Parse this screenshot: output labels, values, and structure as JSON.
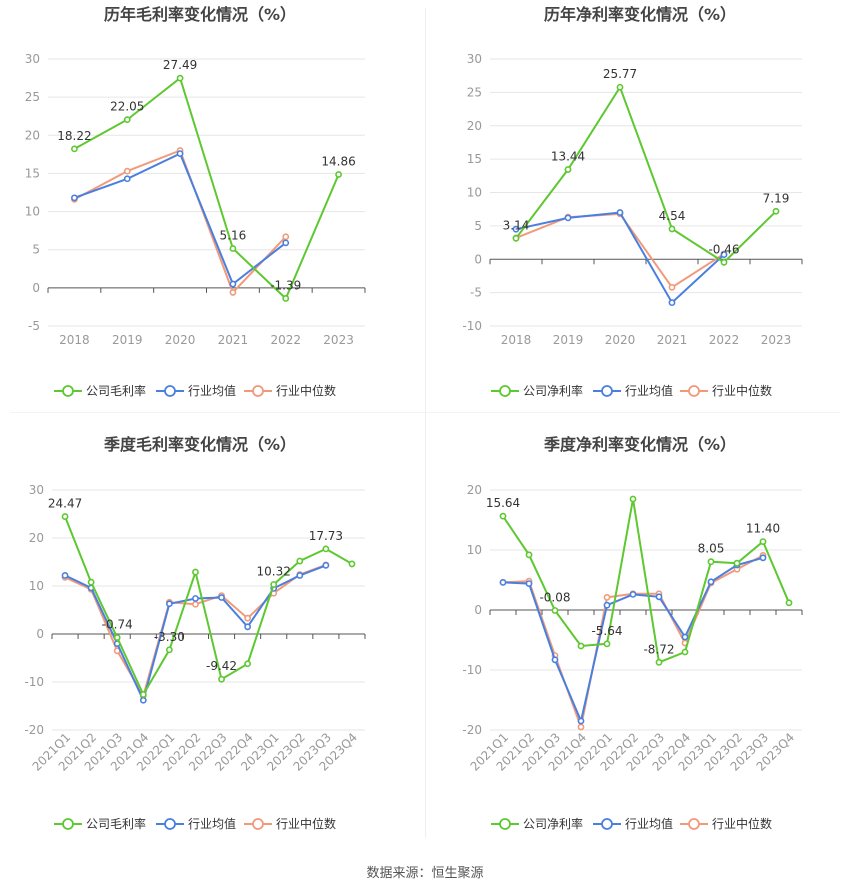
{
  "colors": {
    "company": "#5dc830",
    "industry_avg": "#4a7fe0",
    "industry_median": "#f09a7a",
    "grid": "#e6e6e6",
    "axis_text": "#999999",
    "title_text": "#444444"
  },
  "source": "数据来源：恒生聚源",
  "chart_data": [
    {
      "type": "line",
      "title": "历年毛利率变化情况（%）",
      "categories": [
        "2018",
        "2019",
        "2020",
        "2021",
        "2022",
        "2023"
      ],
      "ylim": [
        -5,
        30
      ],
      "yticks": [
        -5,
        0,
        5,
        10,
        15,
        20,
        25,
        30
      ],
      "grid": true,
      "legend": "bottom",
      "series": [
        {
          "name": "公司毛利率",
          "values": [
            18.22,
            22.05,
            27.49,
            5.16,
            -1.39,
            14.86
          ],
          "labels": [
            "18.22",
            "22.05",
            "27.49",
            "5.16",
            "-1.39",
            "14.86"
          ]
        },
        {
          "name": "行业均值",
          "values": [
            11.8,
            14.3,
            17.6,
            0.5,
            5.9,
            null
          ]
        },
        {
          "name": "行业中位数",
          "values": [
            11.6,
            15.3,
            18.0,
            -0.6,
            6.7,
            null
          ]
        }
      ]
    },
    {
      "type": "line",
      "title": "历年净利率变化情况（%）",
      "categories": [
        "2018",
        "2019",
        "2020",
        "2021",
        "2022",
        "2023"
      ],
      "ylim": [
        -10,
        30
      ],
      "yticks": [
        -10,
        -5,
        0,
        5,
        10,
        15,
        20,
        25,
        30
      ],
      "grid": true,
      "legend": "bottom",
      "series": [
        {
          "name": "公司净利率",
          "values": [
            3.14,
            13.44,
            25.77,
            4.54,
            -0.46,
            7.19
          ],
          "labels": [
            "3.14",
            "13.44",
            "25.77",
            "4.54",
            "-0.46",
            "7.19"
          ]
        },
        {
          "name": "行业均值",
          "values": [
            4.5,
            6.2,
            7.0,
            -6.5,
            0.7,
            null
          ]
        },
        {
          "name": "行业中位数",
          "values": [
            3.2,
            6.3,
            6.8,
            -4.2,
            0.8,
            null
          ]
        }
      ]
    },
    {
      "type": "line",
      "title": "季度毛利率变化情况（%）",
      "categories": [
        "2021Q1",
        "2021Q2",
        "2021Q3",
        "2021Q4",
        "2022Q1",
        "2022Q2",
        "2022Q3",
        "2022Q4",
        "2023Q1",
        "2023Q2",
        "2023Q3",
        "2023Q4"
      ],
      "ylim": [
        -20,
        30
      ],
      "yticks": [
        -20,
        -10,
        0,
        10,
        20,
        30
      ],
      "grid": true,
      "legend": "bottom",
      "series": [
        {
          "name": "公司毛利率",
          "values": [
            24.47,
            10.8,
            -0.74,
            -12.6,
            -3.3,
            12.9,
            -9.42,
            -6.2,
            10.32,
            15.2,
            17.73,
            14.6
          ],
          "labels": [
            "24.47",
            "",
            "-0.74",
            "",
            "-3.30",
            "",
            "-9.42",
            "",
            "10.32",
            "",
            "17.73",
            ""
          ]
        },
        {
          "name": "行业均值",
          "values": [
            12.2,
            9.6,
            -2.0,
            -13.8,
            6.3,
            7.4,
            7.6,
            1.5,
            9.5,
            12.2,
            14.3,
            null
          ]
        },
        {
          "name": "行业中位数",
          "values": [
            11.8,
            9.3,
            -3.5,
            -12.9,
            6.6,
            6.2,
            8.0,
            3.3,
            8.5,
            12.4,
            14.4,
            null
          ]
        }
      ]
    },
    {
      "type": "line",
      "title": "季度净利率变化情况（%）",
      "categories": [
        "2021Q1",
        "2021Q2",
        "2021Q3",
        "2021Q4",
        "2022Q1",
        "2022Q2",
        "2022Q3",
        "2022Q4",
        "2023Q1",
        "2023Q2",
        "2023Q3",
        "2023Q4"
      ],
      "ylim": [
        -20,
        20
      ],
      "yticks": [
        -20,
        -10,
        0,
        10,
        20
      ],
      "grid": true,
      "legend": "bottom",
      "series": [
        {
          "name": "公司净利率",
          "values": [
            15.64,
            9.2,
            -0.08,
            -6.0,
            -5.64,
            18.5,
            -8.72,
            -7.0,
            8.05,
            7.8,
            11.4,
            1.2
          ],
          "labels": [
            "15.64",
            "",
            "-0.08",
            "",
            "-5.64",
            "",
            "-8.72",
            "",
            "8.05",
            "",
            "11.40",
            ""
          ]
        },
        {
          "name": "行业均值",
          "values": [
            4.6,
            4.4,
            -8.3,
            -18.5,
            0.8,
            2.6,
            2.2,
            -4.5,
            4.7,
            7.5,
            8.7,
            null
          ]
        },
        {
          "name": "行业中位数",
          "values": [
            4.6,
            4.8,
            -7.6,
            -19.5,
            2.1,
            2.7,
            2.7,
            -5.5,
            4.5,
            6.8,
            9.1,
            null
          ]
        }
      ]
    }
  ]
}
